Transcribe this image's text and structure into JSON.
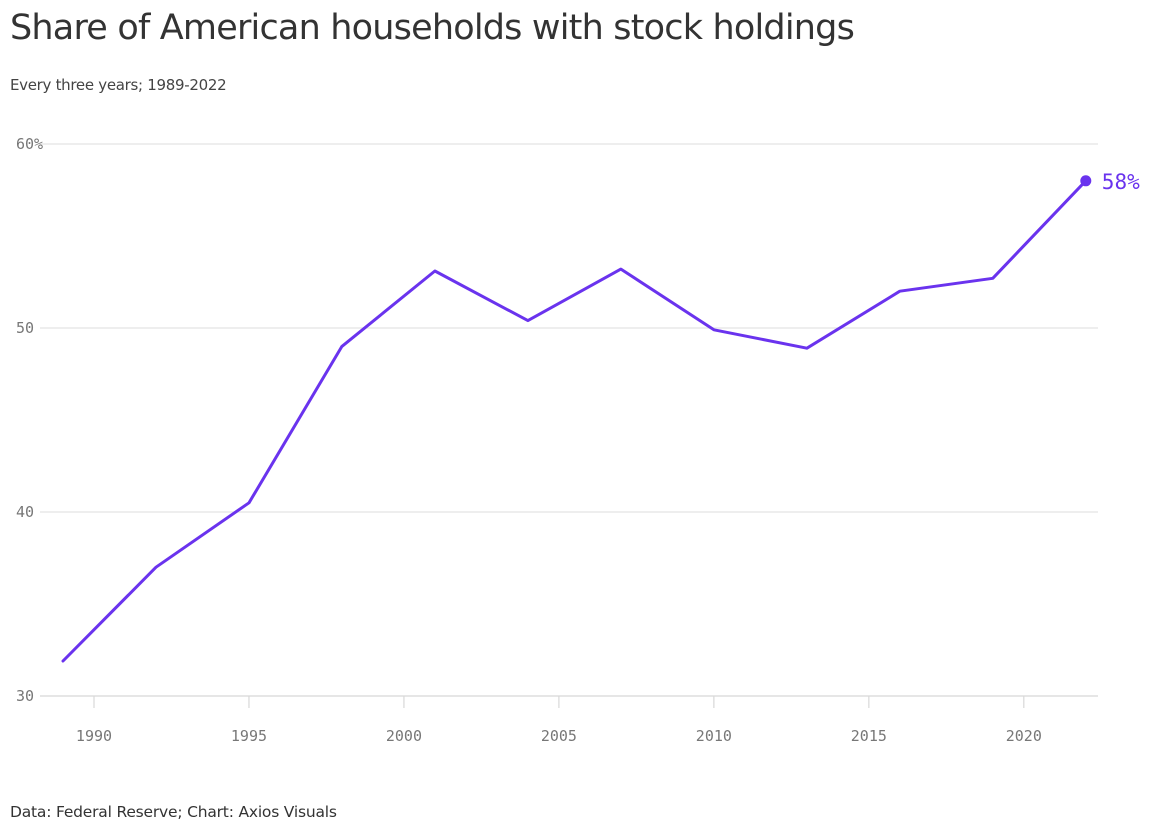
{
  "title": "Share of American households with stock holdings",
  "subtitle": "Every three years; 1989-2022",
  "source": "Data: Federal Reserve; Chart: Axios Visuals",
  "colors": {
    "line": "#6a33ee",
    "grid": "#e4e4e4",
    "axis": "#d8d8d8",
    "tick_text": "#777777"
  },
  "chart_data": {
    "type": "line",
    "title": "Share of American households with stock holdings",
    "subtitle": "Every three years; 1989-2022",
    "xlabel": "",
    "ylabel": "",
    "x": [
      1989,
      1992,
      1995,
      1998,
      2001,
      2004,
      2007,
      2010,
      2013,
      2016,
      2019,
      2022
    ],
    "series": [
      {
        "values": [
          31.9,
          37.0,
          40.5,
          49.0,
          53.1,
          50.4,
          53.2,
          49.9,
          48.9,
          52.0,
          52.7,
          58.0
        ]
      }
    ],
    "xlim": [
      1989,
      2022.2
    ],
    "ylim": [
      30,
      60
    ],
    "x_ticks": [
      1990,
      1995,
      2000,
      2005,
      2010,
      2015,
      2020
    ],
    "x_tick_labels": [
      "1990",
      "1995",
      "2000",
      "2005",
      "2010",
      "2015",
      "2020"
    ],
    "y_ticks": [
      30,
      40,
      50,
      60
    ],
    "y_tick_labels": [
      "30",
      "40",
      "50",
      "60%"
    ],
    "end_label": "58%",
    "grid": true,
    "legend": "none"
  }
}
